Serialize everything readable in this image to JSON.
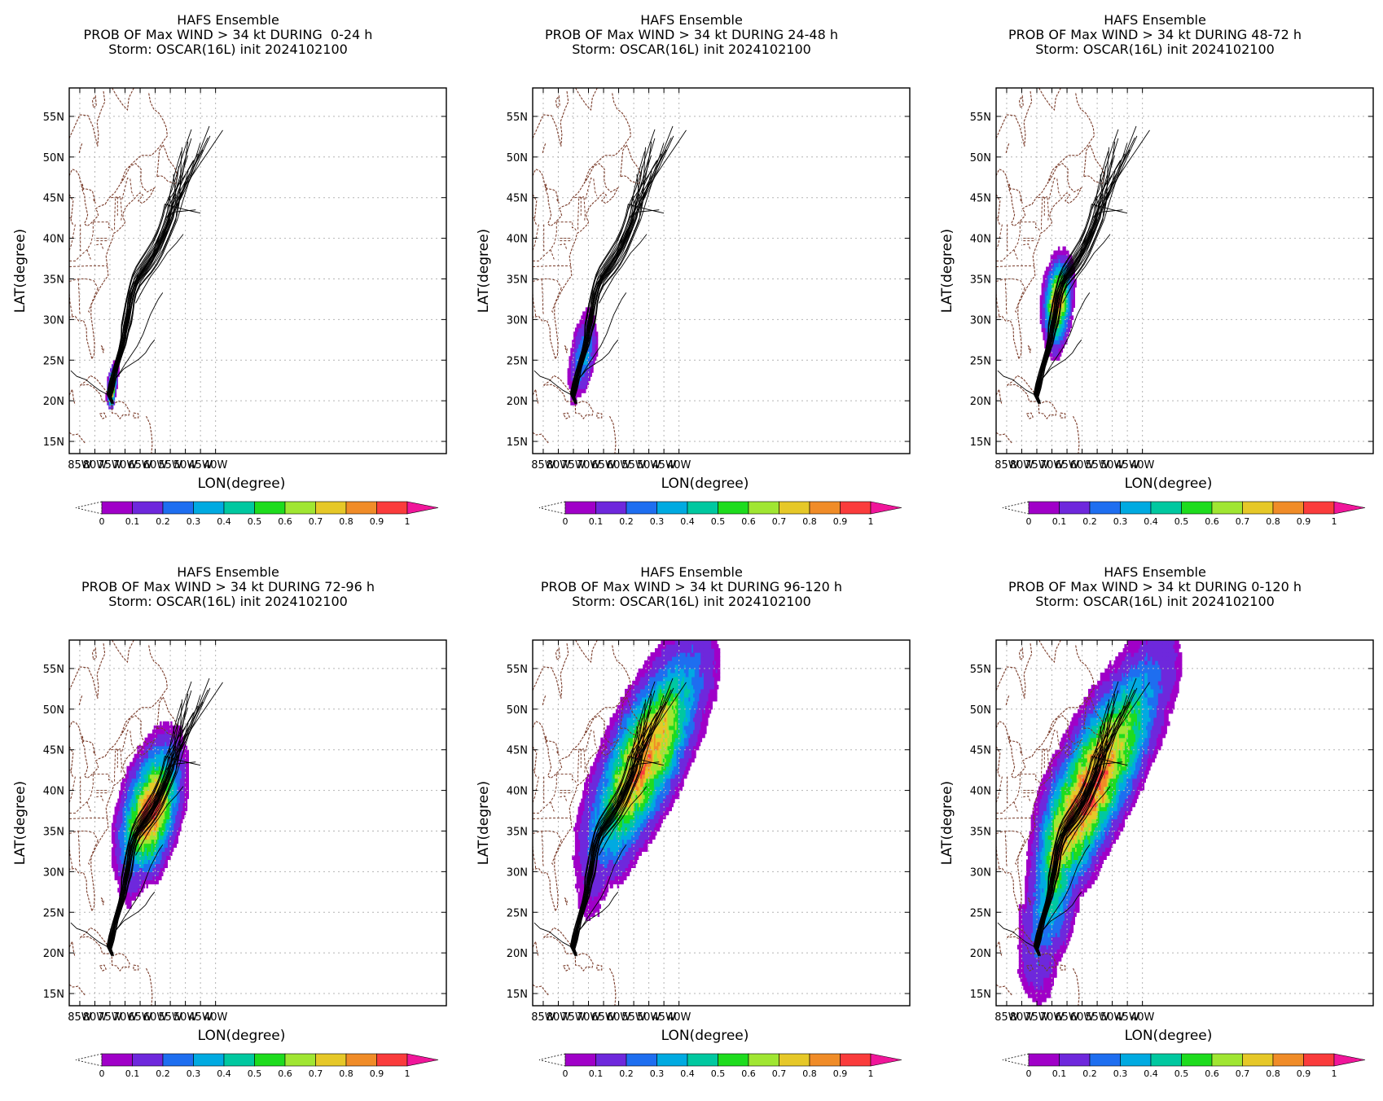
{
  "panels": [
    {
      "title1": "HAFS Ensemble",
      "title2": "PROB OF Max WIND > 34 kt DURING  0-24 h",
      "title3": "Storm: OSCAR(16L) init 2024102100",
      "stage": 0
    },
    {
      "title1": "HAFS Ensemble",
      "title2": "PROB OF Max WIND > 34 kt DURING 24-48 h",
      "title3": "Storm: OSCAR(16L) init 2024102100",
      "stage": 1
    },
    {
      "title1": "HAFS Ensemble",
      "title2": "PROB OF Max WIND > 34 kt DURING 48-72 h",
      "title3": "Storm: OSCAR(16L) init 2024102100",
      "stage": 2
    },
    {
      "title1": "HAFS Ensemble",
      "title2": "PROB OF Max WIND > 34 kt DURING 72-96 h",
      "title3": "Storm: OSCAR(16L) init 2024102100",
      "stage": 3
    },
    {
      "title1": "HAFS Ensemble",
      "title2": "PROB OF Max WIND > 34 kt DURING 96-120 h",
      "title3": "Storm: OSCAR(16L) init 2024102100",
      "stage": 4
    },
    {
      "title1": "HAFS Ensemble",
      "title2": "PROB OF Max WIND > 34 kt DURING 0-120 h",
      "title3": "Storm: OSCAR(16L) init 2024102100",
      "stage": 5
    }
  ],
  "axes": {
    "xlabel": "LON(degree)",
    "ylabel": "LAT(degree)",
    "lon_ticks": [
      "85W",
      "80W",
      "75W",
      "70W",
      "65W",
      "60W",
      "55W",
      "50W",
      "45W",
      "40W"
    ],
    "lat_ticks": [
      "15N",
      "20N",
      "25N",
      "30N",
      "35N",
      "40N",
      "45N",
      "50N",
      "55N"
    ]
  },
  "colorbar": {
    "labels": [
      "0",
      "0.1",
      "0.2",
      "0.3",
      "0.4",
      "0.5",
      "0.6",
      "0.7",
      "0.8",
      "0.9",
      "1"
    ],
    "colors": [
      "#a000c8",
      "#6e28dc",
      "#1e6ef0",
      "#00aae1",
      "#00c8a0",
      "#1edc1e",
      "#a0e632",
      "#e6c828",
      "#f08c28",
      "#fa3c3c"
    ],
    "over_color": "#f0169a"
  }
}
